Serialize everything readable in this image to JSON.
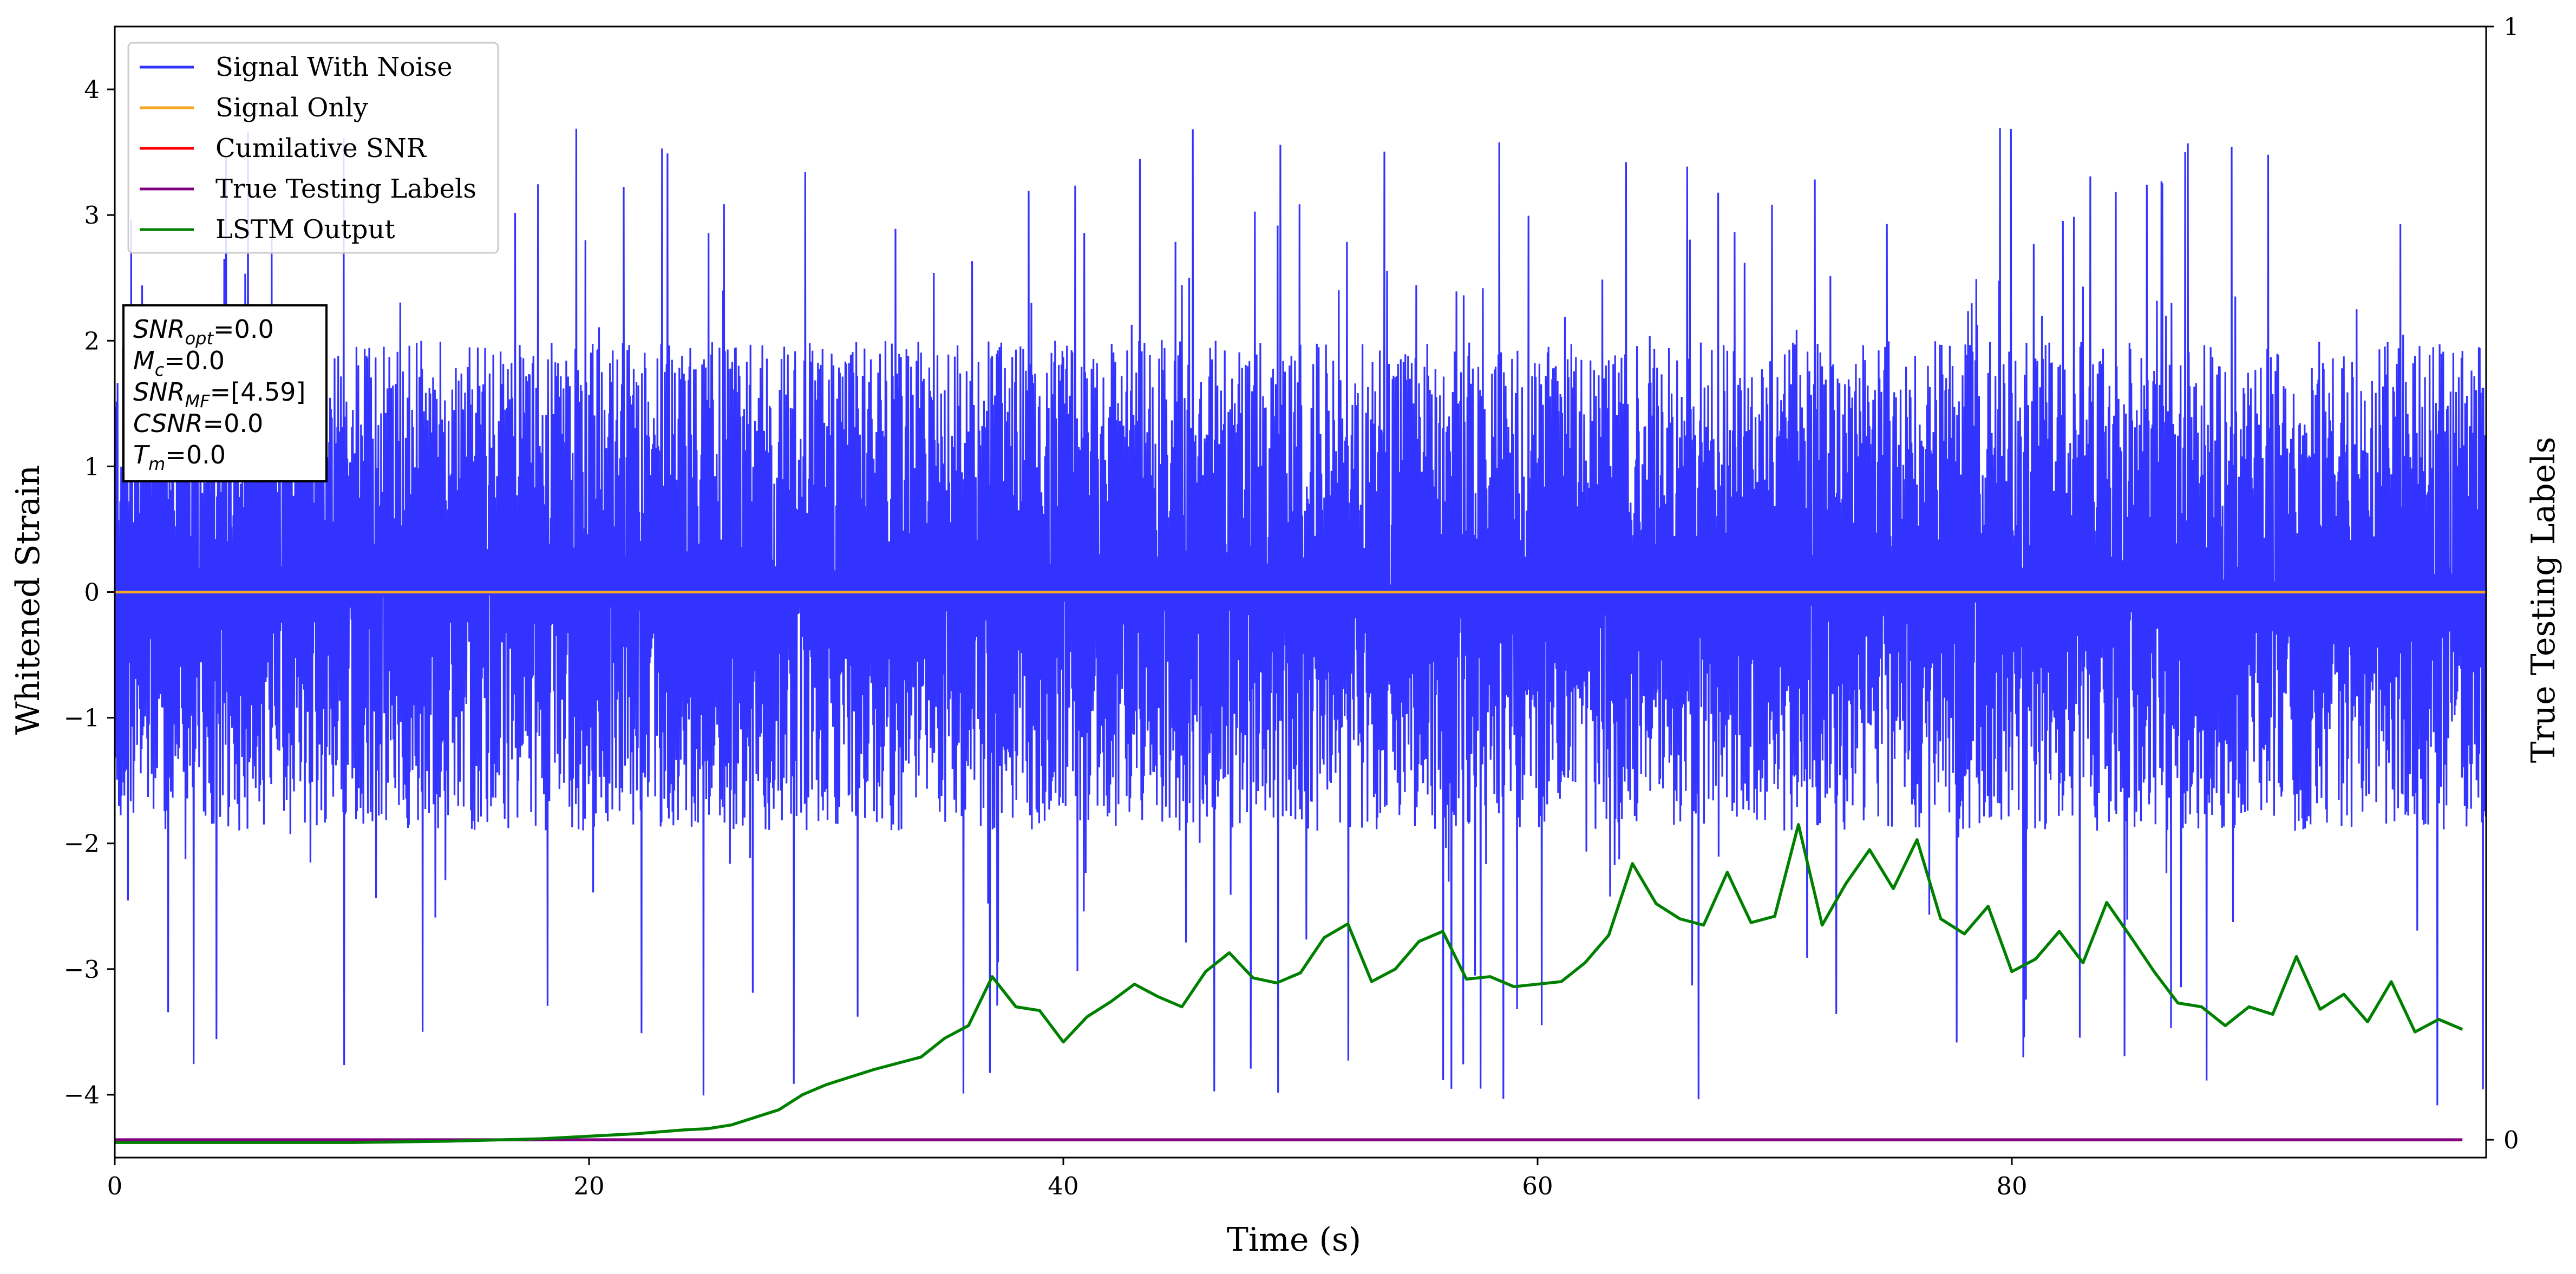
{
  "chart_data": {
    "type": "line",
    "xlabel": "Time (s)",
    "ylabel": "Whitened Strain",
    "y2label": "True Testing Labels",
    "xlim": [
      0,
      100
    ],
    "ylim": [
      -4.5,
      4.5
    ],
    "y2lim": [
      -0.016,
      1.0
    ],
    "x_ticks": [
      0,
      20,
      40,
      60,
      80
    ],
    "y_ticks": [
      -4,
      -3,
      -2,
      -1,
      0,
      1,
      2,
      3,
      4
    ],
    "y2_ticks": [
      0,
      1
    ],
    "x_tick_labels": [
      "0",
      "20",
      "40",
      "60",
      "80"
    ],
    "y_tick_labels": [
      "−4",
      "−3",
      "−2",
      "−1",
      "0",
      "1",
      "2",
      "3",
      "4"
    ],
    "y2_tick_labels": [
      "0",
      "1"
    ],
    "legend_placement": "upper-left",
    "legend": [
      {
        "label": "Signal With Noise",
        "color": "#3333ff"
      },
      {
        "label": "Signal Only",
        "color": "#f5a623"
      },
      {
        "label": "Cumilative SNR",
        "color": "#ff0000"
      },
      {
        "label": "True Testing Labels",
        "color": "#800080"
      },
      {
        "label": "LSTM Output",
        "color": "#008000"
      }
    ],
    "info_box": {
      "lines": [
        {
          "sym": "SNR",
          "sub": "opt",
          "value": "=0.0"
        },
        {
          "sym": "M",
          "sub": "c",
          "value": "=0.0"
        },
        {
          "sym": "SNR",
          "sub": "MF",
          "value": "=[4.59]"
        },
        {
          "sym": "CSNR",
          "sub": "",
          "value": "=0.0"
        },
        {
          "sym": "T",
          "sub": "m",
          "value": "=0.0"
        }
      ]
    },
    "series": [
      {
        "name": "Signal With Noise",
        "color": "#3333ff",
        "kind": "noise",
        "x_range": [
          0,
          100
        ],
        "envelope": {
          "typical_max": 2.0,
          "typical_min": -1.9,
          "peak_max": 3.73,
          "peak_min": -4.1
        }
      },
      {
        "name": "Signal Only",
        "color": "#f5a623",
        "kind": "line",
        "x": [
          0,
          100
        ],
        "y": [
          0,
          0
        ]
      },
      {
        "name": "True Testing Labels",
        "color": "#800080",
        "axis": "right",
        "kind": "line",
        "x": [
          0,
          99
        ],
        "y": [
          0,
          0
        ]
      },
      {
        "name": "LSTM Output",
        "color": "#008000",
        "axis": "left",
        "kind": "line",
        "x": [
          0,
          10,
          14,
          16,
          18,
          20,
          22,
          24,
          25,
          26,
          27,
          28,
          29,
          30,
          31,
          32,
          33,
          34,
          35,
          36,
          37,
          38,
          39,
          40,
          41,
          42,
          43,
          44,
          45,
          46,
          47,
          48,
          49,
          50,
          51,
          52,
          53,
          54,
          55,
          56,
          57,
          58,
          59,
          60,
          61,
          62,
          63,
          64,
          65,
          66,
          67,
          68,
          69,
          70,
          71,
          72,
          73,
          74,
          75,
          76,
          77,
          78,
          79,
          80,
          81,
          82,
          83,
          84,
          85,
          86,
          87,
          88,
          89,
          90,
          91,
          92,
          93,
          94,
          95,
          96,
          97,
          98,
          99
        ],
        "y": [
          -4.38,
          -4.38,
          -4.37,
          -4.36,
          -4.35,
          -4.33,
          -4.31,
          -4.28,
          -4.27,
          -4.24,
          -4.18,
          -4.12,
          -4.0,
          -3.92,
          -3.86,
          -3.8,
          -3.75,
          -3.7,
          -3.55,
          -3.45,
          -3.06,
          -3.3,
          -3.33,
          -3.58,
          -3.38,
          -3.26,
          -3.12,
          -3.22,
          -3.3,
          -3.02,
          -2.87,
          -3.07,
          -3.11,
          -3.03,
          -2.75,
          -2.64,
          -3.1,
          -3.0,
          -2.78,
          -2.7,
          -3.08,
          -3.06,
          -3.14,
          -3.12,
          -3.1,
          -2.95,
          -2.73,
          -2.16,
          -2.48,
          -2.6,
          -2.65,
          -2.23,
          -2.63,
          -2.58,
          -1.85,
          -2.65,
          -2.32,
          -2.05,
          -2.36,
          -1.97,
          -2.6,
          -2.72,
          -2.5,
          -3.02,
          -2.92,
          -2.7,
          -2.95,
          -2.47,
          -2.74,
          -3.02,
          -3.27,
          -3.3,
          -3.45,
          -3.3,
          -3.36,
          -2.9,
          -3.32,
          -3.2,
          -3.42,
          -3.1,
          -3.5,
          -3.4,
          -3.48
        ]
      }
    ]
  }
}
